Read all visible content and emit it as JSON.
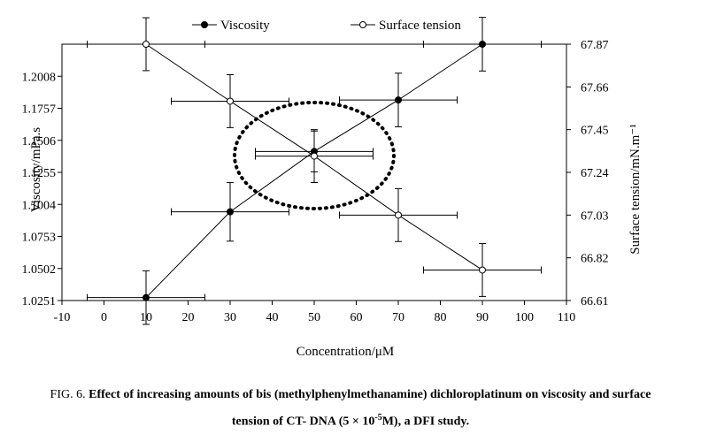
{
  "chart_data": {
    "type": "scatter",
    "x_axis": {
      "label": "Concentration/μM",
      "range": [
        -10,
        110
      ],
      "ticks": [
        "-10",
        "0",
        "10",
        "20",
        "30",
        "40",
        "50",
        "60",
        "70",
        "80",
        "90",
        "100",
        "110"
      ]
    },
    "y_left": {
      "label": "Viscosity/mPa.s",
      "range": [
        1.0251,
        1.2259
      ],
      "ticks": [
        "1.0251",
        "1.0502",
        "1.0753",
        "1.1004",
        "1.1255",
        "1.1506",
        "1.1757",
        "1.2008"
      ]
    },
    "y_right": {
      "label": "Surface tension/mN.m⁻¹",
      "range": [
        66.61,
        67.87
      ],
      "ticks": [
        "66.61",
        "66.82",
        "67.03",
        "67.24",
        "67.45",
        "67.66",
        "67.87"
      ]
    },
    "series": [
      {
        "name": "Viscosity",
        "axis": "left",
        "marker": "filled",
        "x": [
          10,
          30,
          50,
          70,
          90
        ],
        "y": [
          1.0274,
          1.0946,
          1.1419,
          1.1822,
          1.2259
        ],
        "x_err": [
          14,
          14,
          14,
          14,
          14
        ],
        "y_err": [
          0.021,
          0.023,
          0.016,
          0.021,
          0.021
        ]
      },
      {
        "name": "Surface tension",
        "axis": "right",
        "marker": "open",
        "x": [
          10,
          30,
          50,
          70,
          90
        ],
        "y": [
          67.87,
          67.59,
          67.32,
          67.03,
          66.76
        ],
        "x_err": [
          14,
          14,
          14,
          14,
          14
        ],
        "y_err": [
          0.13,
          0.13,
          0.13,
          0.13,
          0.13
        ]
      }
    ],
    "annotation": "dotted-ellipse"
  },
  "legend": {
    "viscosity": "Viscosity",
    "surface_tension": "Surface tension"
  },
  "caption": {
    "label": "FIG. 6.",
    "line1": "Effect of increasing amounts of bis (methylphenylmethanamine) dichloroplatinum on viscosity and surface",
    "line2_pre": "tension of CT- DNA (5 × 10",
    "line2_sup": "-5",
    "line2_post": "M), a DFI study."
  }
}
